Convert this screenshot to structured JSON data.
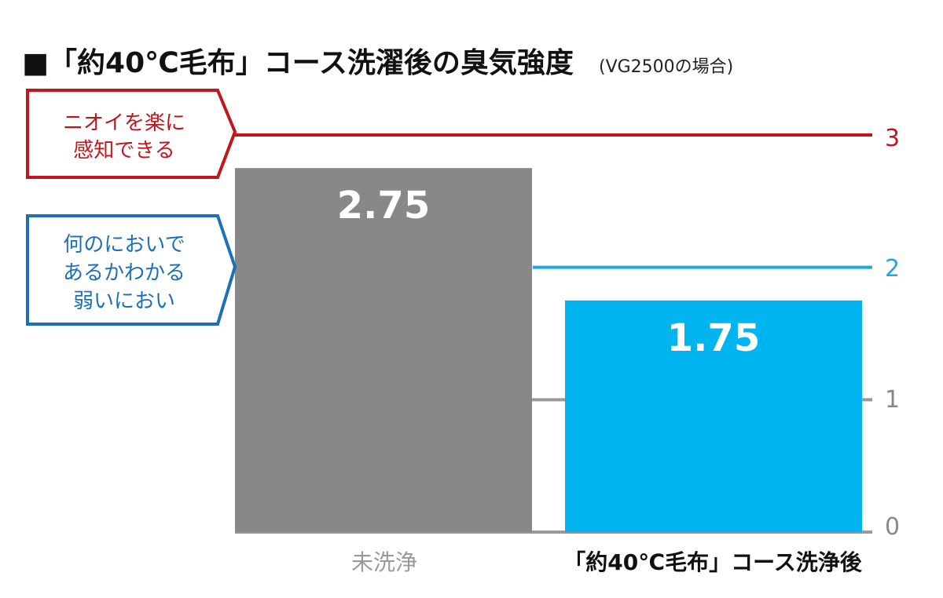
{
  "chart_data": {
    "type": "bar",
    "title": "■「約40℃毛布」コース洗濯後の臭気強度",
    "title_note": "(VG2500の場合)",
    "categories": [
      "未洗浄",
      "「約40℃毛布」コース洗浄後"
    ],
    "values": [
      2.75,
      1.75
    ],
    "value_labels": [
      "2.75",
      "1.75"
    ],
    "bar_colors": [
      "#888888",
      "#00b4f0"
    ],
    "ylim": [
      0,
      3
    ],
    "yticks": [
      "0",
      "1",
      "2",
      "3"
    ],
    "reference_lines": [
      {
        "value": 3,
        "color": "#c0171e",
        "label_lines": [
          "ニオイを楽に",
          "感知できる"
        ]
      },
      {
        "value": 2,
        "color": "#1fa6e8",
        "label_lines": [
          "何のにおいで",
          "あるかわかる",
          "弱いにおい"
        ]
      },
      {
        "value": 1,
        "color": "#999999"
      }
    ],
    "grid": false,
    "legend": "none"
  }
}
